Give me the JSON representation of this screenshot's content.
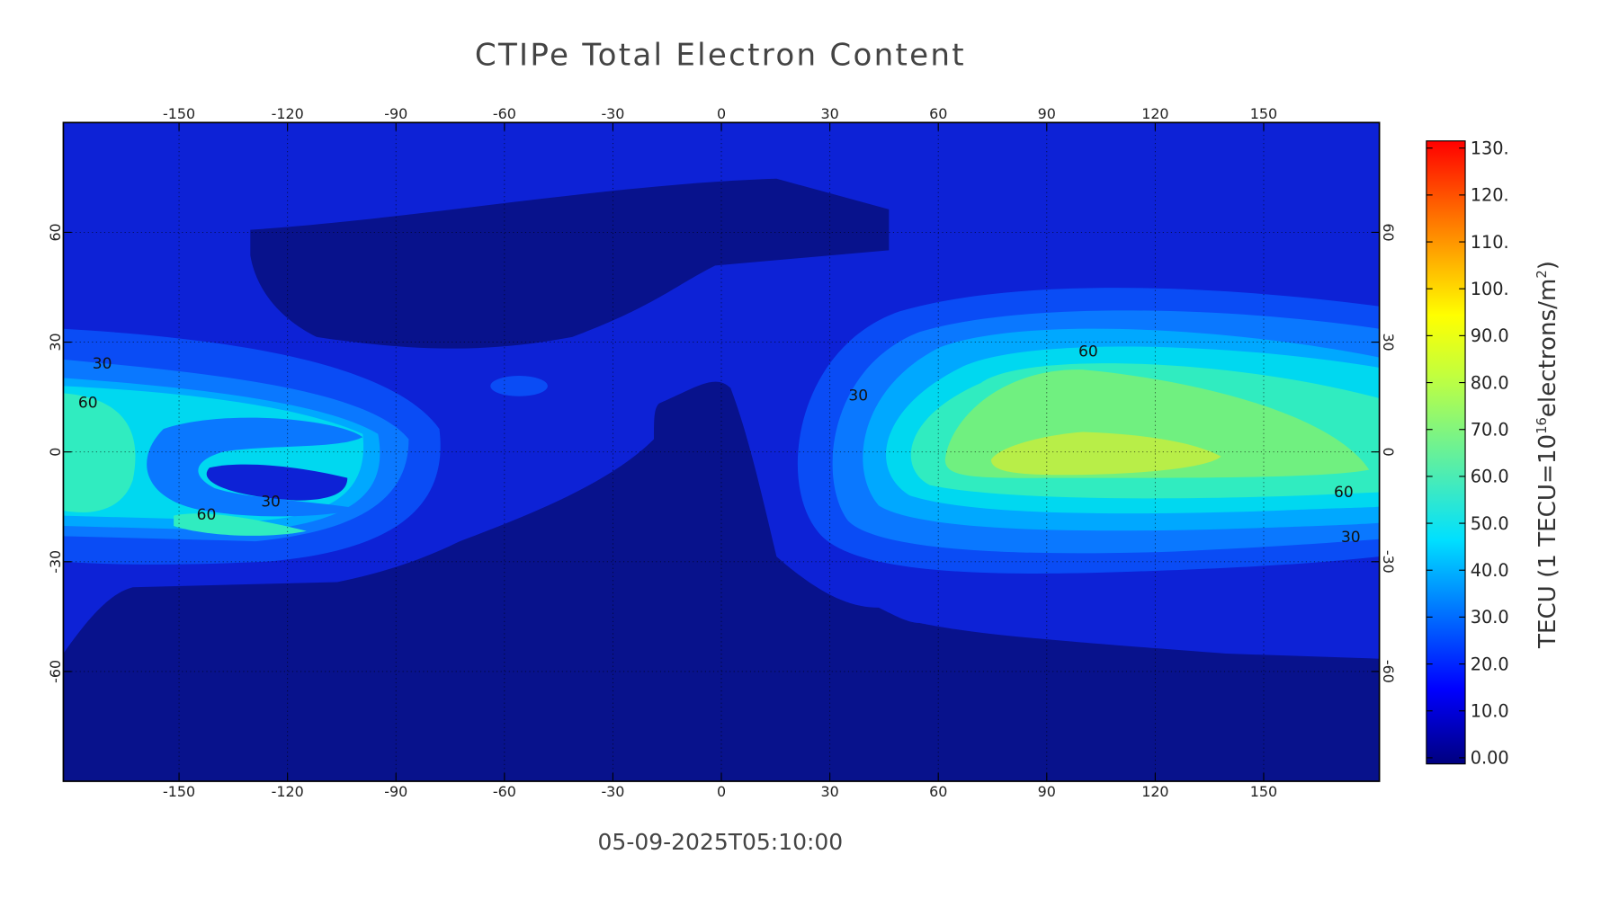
{
  "chart_data": {
    "type": "contour_map",
    "title": "CTIPe Total Electron Content",
    "timestamp": "05-09-2025T05:10:00",
    "xlim": [
      -182,
      182
    ],
    "ylim": [
      -90,
      90
    ],
    "xticks": [
      -150,
      -120,
      -90,
      -60,
      -30,
      0,
      30,
      60,
      90,
      120,
      150
    ],
    "yticks": [
      -60,
      -30,
      0,
      30,
      60
    ],
    "grid": true,
    "contour_labels": [
      30,
      60,
      30,
      60,
      60,
      30,
      60,
      30
    ],
    "colorbar": {
      "label": {
        "prefix": "TECU (1 TECU=10",
        "exp1": "16",
        "mid": "electrons/m",
        "exp2": "2",
        "suffix": ")"
      },
      "clim": [
        0,
        130
      ],
      "ticks": [
        {
          "value": 0,
          "label": "0.00"
        },
        {
          "value": 10,
          "label": "10.0"
        },
        {
          "value": 20,
          "label": "20.0"
        },
        {
          "value": 30,
          "label": "30.0"
        },
        {
          "value": 40,
          "label": "40.0"
        },
        {
          "value": 50,
          "label": "50.0"
        },
        {
          "value": 60,
          "label": "60.0"
        },
        {
          "value": 70,
          "label": "70.0"
        },
        {
          "value": 80,
          "label": "80.0"
        },
        {
          "value": 90,
          "label": "90.0"
        },
        {
          "value": 100,
          "label": "100."
        },
        {
          "value": 110,
          "label": "110."
        },
        {
          "value": 120,
          "label": "120."
        },
        {
          "value": 130,
          "label": "130."
        }
      ]
    }
  }
}
